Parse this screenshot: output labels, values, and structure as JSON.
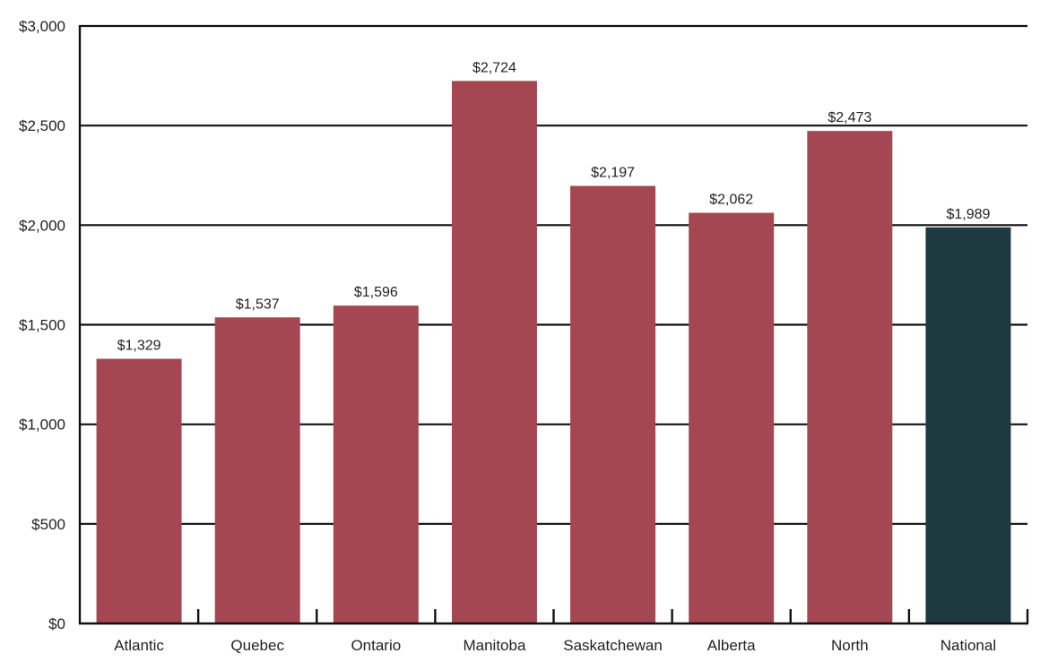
{
  "chart_data": {
    "type": "bar",
    "title": "",
    "xlabel": "",
    "ylabel": "",
    "categories": [
      "Atlantic",
      "Quebec",
      "Ontario",
      "Manitoba",
      "Saskatchewan",
      "Alberta",
      "North",
      "National"
    ],
    "values": [
      1329,
      1537,
      1596,
      2724,
      2197,
      2062,
      2473,
      1989
    ],
    "value_labels": [
      "$1,329",
      "$1,537",
      "$1,596",
      "$2,724",
      "$2,197",
      "$2,062",
      "$2,473",
      "$1,989"
    ],
    "ylim": [
      0,
      3000
    ],
    "yticks": [
      0,
      500,
      1000,
      1500,
      2000,
      2500,
      3000
    ],
    "ytick_labels": [
      "$0",
      "$500",
      "$1,000",
      "$1,500",
      "$2,000",
      "$2,500",
      "$3,000"
    ],
    "grid": true,
    "legend": null,
    "colors": {
      "region_bar": "#a54752",
      "national_bar": "#1e3a40",
      "gridline": "#111111"
    },
    "highlight_category": "National"
  }
}
